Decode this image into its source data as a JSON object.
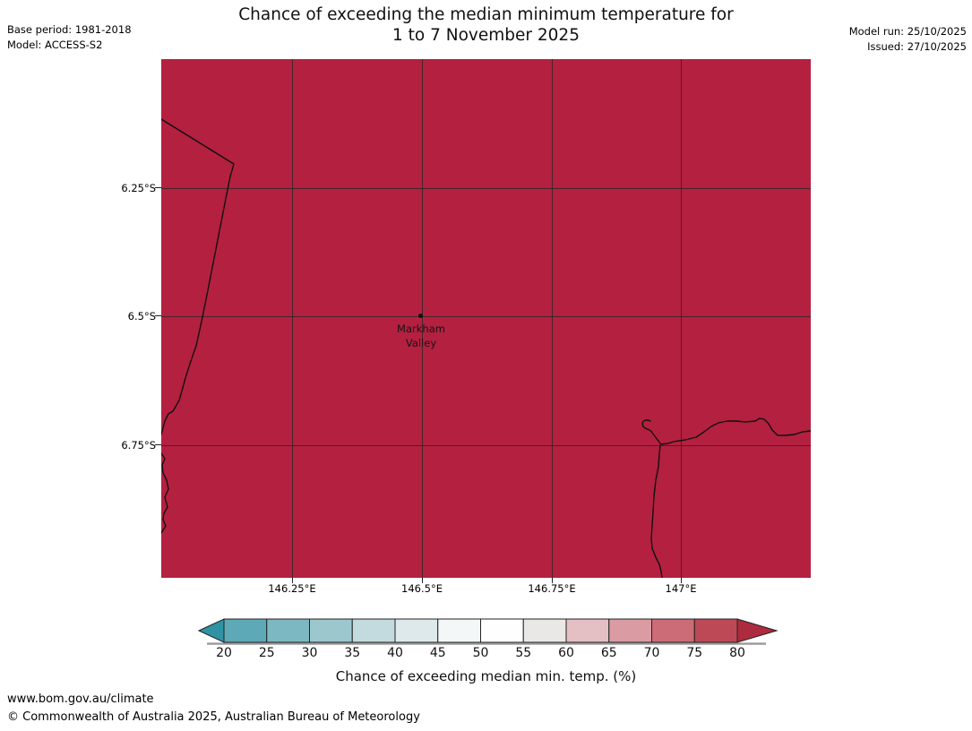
{
  "header": {
    "base_period": "Base period: 1981-2018",
    "model": "Model: ACCESS-S2",
    "title_line1": "Chance of exceeding the median minimum temperature for",
    "title_line2": "1 to 7 November 2025",
    "model_run": "Model run: 25/10/2025",
    "issued": "Issued: 27/10/2025"
  },
  "map": {
    "fill_color": "#b42040",
    "lat_labels": [
      "6.25°S",
      "6.5°S",
      "6.75°S"
    ],
    "lon_labels": [
      "146.25°E",
      "146.5°E",
      "146.75°E",
      "147°E"
    ],
    "marker": {
      "place": "Markham Valley",
      "label_line1": "Markham",
      "label_line2": "Valley"
    }
  },
  "colorbar": {
    "caption": "Chance of exceeding median min. temp. (%)",
    "tick_labels": [
      "20",
      "25",
      "30",
      "35",
      "40",
      "45",
      "50",
      "55",
      "60",
      "65",
      "70",
      "75",
      "80"
    ],
    "segment_colors": [
      "#5da9b7",
      "#7cb8c2",
      "#9bc7cd",
      "#c3dbde",
      "#dde9ea",
      "#f4f7f7",
      "#fefefe",
      "#e9e8e6",
      "#e4bfc3",
      "#da9ba2",
      "#cb6c77",
      "#bd4956"
    ],
    "arrow_left_color": "#2f93a4",
    "arrow_right_color": "#ad2b3e",
    "outline_color": "#222222",
    "underline_color": "#999999"
  },
  "footer": {
    "url": "www.bom.gov.au/climate",
    "copyright": "© Commonwealth of Australia 2025, Australian Bureau of Meteorology"
  }
}
